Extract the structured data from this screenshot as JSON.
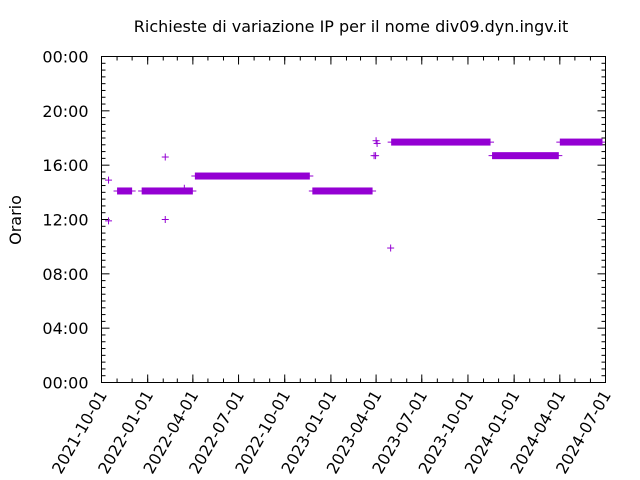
{
  "chart_data": {
    "type": "scatter",
    "title": "Richieste di variazione IP per il nome div09.dyn.ingv.it",
    "xlabel": "",
    "ylabel": "Orario",
    "x_type": "date",
    "xlim": [
      "2021-10-01",
      "2024-07-01"
    ],
    "x_ticks": [
      "2021-10-01",
      "2022-01-01",
      "2022-04-01",
      "2022-07-01",
      "2022-10-01",
      "2023-01-01",
      "2023-04-01",
      "2023-07-01",
      "2023-10-01",
      "2024-01-01",
      "2024-04-01",
      "2024-07-01"
    ],
    "y_unit": "hours",
    "ylim": [
      0,
      24
    ],
    "y_ticks": [
      0,
      4,
      8,
      12,
      16,
      20,
      24
    ],
    "y_tick_labels": [
      "00:00",
      "04:00",
      "08:00",
      "12:00",
      "16:00",
      "20:00",
      "00:00"
    ],
    "marker": "+",
    "color": "#9400d3",
    "grid": false,
    "series": [
      {
        "points": [
          [
            "2021-10-15",
            14.9
          ],
          [
            "2021-10-15",
            11.9
          ],
          [
            "2022-02-05",
            16.6
          ],
          [
            "2022-02-05",
            12.0
          ],
          [
            "2022-03-15",
            14.3
          ],
          [
            "2023-03-28",
            16.7
          ],
          [
            "2023-03-31",
            16.7
          ],
          [
            "2023-04-01",
            17.8
          ],
          [
            "2023-04-03",
            17.6
          ],
          [
            "2023-04-30",
            9.9
          ]
        ],
        "segments": [
          {
            "start": "2021-11-01",
            "end": "2021-12-01",
            "y": 14.1
          },
          {
            "start": "2021-12-20",
            "end": "2022-04-01",
            "y": 14.1
          },
          {
            "start": "2022-04-05",
            "end": "2022-11-20",
            "y": 15.2
          },
          {
            "start": "2022-11-25",
            "end": "2023-03-25",
            "y": 14.1
          },
          {
            "start": "2023-05-01",
            "end": "2023-11-15",
            "y": 17.7
          },
          {
            "start": "2023-11-18",
            "end": "2024-03-30",
            "y": 16.7
          },
          {
            "start": "2024-04-01",
            "end": "2024-06-25",
            "y": 17.7
          }
        ]
      }
    ]
  }
}
